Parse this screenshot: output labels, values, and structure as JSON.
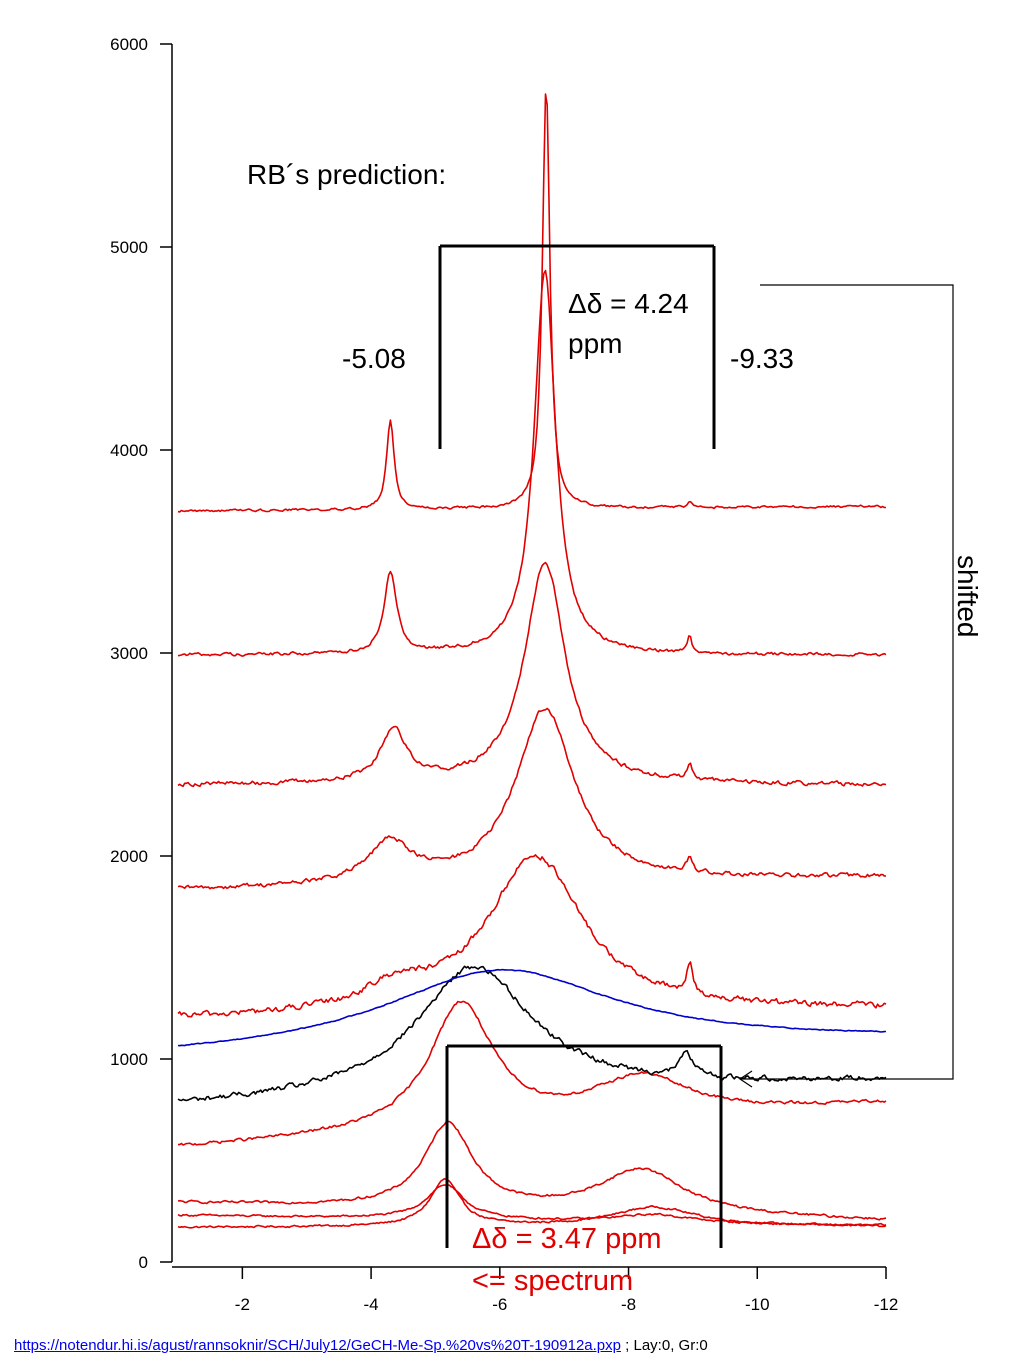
{
  "chart_data": {
    "type": "line",
    "title": "",
    "xlabel": "",
    "ylabel": "",
    "xlim": [
      -1,
      -12
    ],
    "ylim": [
      0,
      6000
    ],
    "x_ticks": [
      "-2",
      "-4",
      "-6",
      "-8",
      "-10",
      "-12"
    ],
    "y_ticks": [
      "0",
      "1000",
      "2000",
      "3000",
      "4000",
      "5000",
      "6000"
    ],
    "grid": false,
    "legend": "none",
    "series": [
      {
        "color": "#e00000",
        "baseline": 170,
        "noise": 8,
        "peaks": [
          {
            "x": -5.15,
            "h": 230,
            "w": 0.28
          },
          {
            "x": -8.4,
            "h": 95,
            "w": 0.8
          }
        ],
        "slope": -0.6
      },
      {
        "color": "#e00000",
        "baseline": 230,
        "noise": 8,
        "peaks": [
          {
            "x": -5.15,
            "h": 170,
            "w": 0.35
          },
          {
            "x": -8.4,
            "h": 40,
            "w": 0.7
          }
        ],
        "slope": 5
      },
      {
        "color": "#e00000",
        "baseline": 290,
        "noise": 10,
        "peaks": [
          {
            "x": -5.2,
            "h": 420,
            "w": 0.45
          },
          {
            "x": -8.2,
            "h": 220,
            "w": 0.8
          }
        ],
        "slope": 8
      },
      {
        "color": "#e00000",
        "baseline": 560,
        "noise": 12,
        "peaks": [
          {
            "x": -5.4,
            "h": 620,
            "w": 0.6
          },
          {
            "x": -8.2,
            "h": 200,
            "w": 0.9
          }
        ],
        "slope": -20
      },
      {
        "color": "#000000",
        "baseline": 760,
        "noise": 22,
        "peaks": [
          {
            "x": -5.6,
            "h": 640,
            "w": 1.1
          },
          {
            "x": -8.9,
            "h": 120,
            "w": 0.12
          }
        ],
        "slope": -12
      },
      {
        "color": "#0000cc",
        "baseline": 1000,
        "noise": 4,
        "peaks": [
          {
            "x": -6.0,
            "h": 400,
            "w": 2.2
          }
        ],
        "slope": -8
      },
      {
        "color": "#e00000",
        "baseline": 1190,
        "noise": 25,
        "peaks": [
          {
            "x": -6.55,
            "h": 780,
            "w": 0.9
          },
          {
            "x": -4.4,
            "h": 110,
            "w": 0.6
          },
          {
            "x": -8.95,
            "h": 150,
            "w": 0.06
          }
        ],
        "slope": -5
      },
      {
        "color": "#e00000",
        "baseline": 1830,
        "noise": 18,
        "peaks": [
          {
            "x": -6.7,
            "h": 860,
            "w": 0.55
          },
          {
            "x": -4.3,
            "h": 200,
            "w": 0.4
          },
          {
            "x": -8.95,
            "h": 80,
            "w": 0.05
          }
        ],
        "slope": -6
      },
      {
        "color": "#e00000",
        "baseline": 2350,
        "noise": 18,
        "peaks": [
          {
            "x": -6.7,
            "h": 1100,
            "w": 0.38
          },
          {
            "x": -4.35,
            "h": 260,
            "w": 0.25
          },
          {
            "x": -8.95,
            "h": 80,
            "w": 0.05
          }
        ],
        "slope": 0
      },
      {
        "color": "#e00000",
        "baseline": 2990,
        "noise": 14,
        "peaks": [
          {
            "x": -6.7,
            "h": 1900,
            "w": 0.2
          },
          {
            "x": -4.3,
            "h": 400,
            "w": 0.12
          },
          {
            "x": -8.95,
            "h": 90,
            "w": 0.04
          }
        ],
        "slope": 0
      },
      {
        "color": "#e00000",
        "baseline": 3700,
        "noise": 10,
        "peaks": [
          {
            "x": -6.72,
            "h": 2080,
            "w": 0.07
          },
          {
            "x": -4.3,
            "h": 440,
            "w": 0.07
          },
          {
            "x": -8.95,
            "h": 30,
            "w": 0.04
          }
        ],
        "slope": -2
      }
    ],
    "annotations": {
      "prediction_label": "RB´s prediction:",
      "left_shift": "-5.08",
      "right_shift": "-9.33",
      "delta_top_line1": "Δδ = 4.24",
      "delta_top_line2": "ppm",
      "delta_bottom": "Δδ = 3.47 ppm",
      "spectrum_label": "<= spectrum",
      "shifted_label": "shifted"
    },
    "colors": {
      "red": "#e00000",
      "black": "#000000",
      "blue": "#0000cc"
    }
  },
  "footer": {
    "link_text": "https://notendur.hi.is/agust/rannsoknir/SCH/July12/GeCH-Me-Sp.%20vs%20T-190912a.pxp",
    "suffix": " ; Lay:0, Gr:0"
  }
}
